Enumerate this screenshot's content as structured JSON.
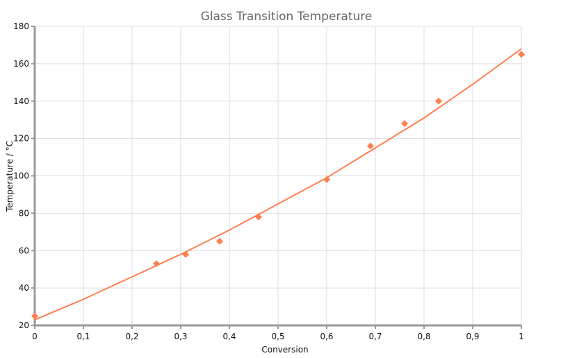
{
  "chart_data": {
    "type": "scatter",
    "title": "Glass Transition Temperature",
    "xlabel": "Conversion",
    "ylabel": "Temperature / °C",
    "xlim": [
      0,
      1
    ],
    "ylim": [
      20,
      180
    ],
    "x_ticks": [
      "0",
      "0,1",
      "0,2",
      "0,3",
      "0,4",
      "0,5",
      "0,6",
      "0,7",
      "0,8",
      "0,9",
      "1"
    ],
    "y_ticks": [
      "20",
      "40",
      "60",
      "80",
      "100",
      "120",
      "140",
      "160",
      "180"
    ],
    "grid": true,
    "series": [
      {
        "type": "scatter",
        "color": "#ff7f50",
        "marker": "diamond",
        "x": [
          0,
          0.25,
          0.31,
          0.38,
          0.46,
          0.6,
          0.69,
          0.76,
          0.83,
          1
        ],
        "y": [
          25,
          53,
          58,
          65,
          78,
          98,
          116,
          128,
          140,
          165
        ]
      },
      {
        "type": "line",
        "color": "#ff7f50",
        "x": [
          0,
          0.1,
          0.2,
          0.3,
          0.4,
          0.5,
          0.6,
          0.7,
          0.8,
          0.9,
          1
        ],
        "y": [
          23,
          34,
          46,
          58,
          71,
          85,
          99,
          115,
          131,
          149,
          168
        ]
      }
    ]
  }
}
